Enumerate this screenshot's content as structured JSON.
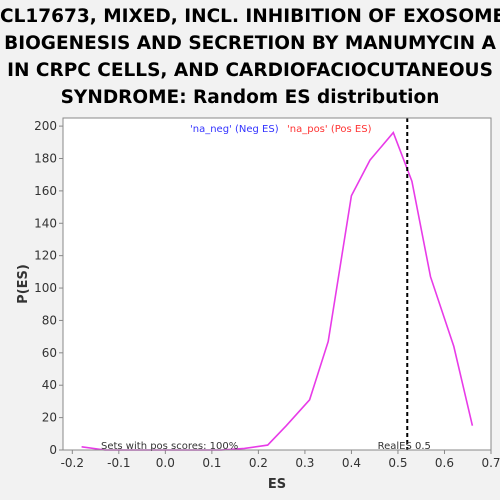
{
  "title_lines": [
    "CL17673, MIXED, INCL. INHIBITION OF EXOSOME",
    "BIOGENESIS AND SECRETION BY MANUMYCIN A",
    "IN CRPC CELLS, AND CARDIOFACIOCUTANEOUS",
    "SYNDROME: Random ES distribution"
  ],
  "chart_data": {
    "type": "line",
    "title": "CL17673, MIXED, INCL. INHIBITION OF EXOSOME BIOGENESIS AND SECRETION BY MANUMYCIN A IN CRPC CELLS, AND CARDIOFACIOCUTANEOUS SYNDROME: Random ES distribution",
    "xlabel": "ES",
    "ylabel": "P(ES)",
    "xlim": [
      -0.22,
      0.7
    ],
    "ylim": [
      0,
      205
    ],
    "xticks": [
      -0.2,
      -0.1,
      0.0,
      0.1,
      0.2,
      0.3,
      0.4,
      0.5,
      0.6,
      0.7
    ],
    "xtick_labels": [
      "-0.2",
      "-0.1",
      "0.0",
      "0.1",
      "0.2",
      "0.3",
      "0.4",
      "0.5",
      "0.6",
      "0.7"
    ],
    "yticks": [
      0,
      20,
      40,
      60,
      80,
      100,
      120,
      140,
      160,
      180,
      200
    ],
    "ytick_labels": [
      "0",
      "20",
      "40",
      "60",
      "80",
      "100",
      "120",
      "140",
      "160",
      "180",
      "200"
    ],
    "legend": [
      {
        "label": "'na_neg' (Neg ES)",
        "color": "#3333ff"
      },
      {
        "label": "'na_pos' (Pos ES)",
        "color": "#ff3333"
      }
    ],
    "series": [
      {
        "name": "na_pos",
        "color": "#e83be8",
        "x": [
          -0.18,
          -0.13,
          -0.08,
          -0.03,
          0.02,
          0.07,
          0.12,
          0.17,
          0.22,
          0.26,
          0.31,
          0.35,
          0.4,
          0.44,
          0.49,
          0.53,
          0.57,
          0.62,
          0.66
        ],
        "y": [
          2,
          0,
          0,
          0,
          0,
          0,
          0,
          1,
          3,
          15,
          31,
          67,
          157,
          179,
          196,
          166,
          107,
          64,
          15
        ]
      }
    ],
    "real_es": {
      "x": 0.52,
      "label": "RealES 0.5",
      "color": "#000000"
    },
    "annotation": "Sets with pos scores: 100%",
    "grid": false
  }
}
